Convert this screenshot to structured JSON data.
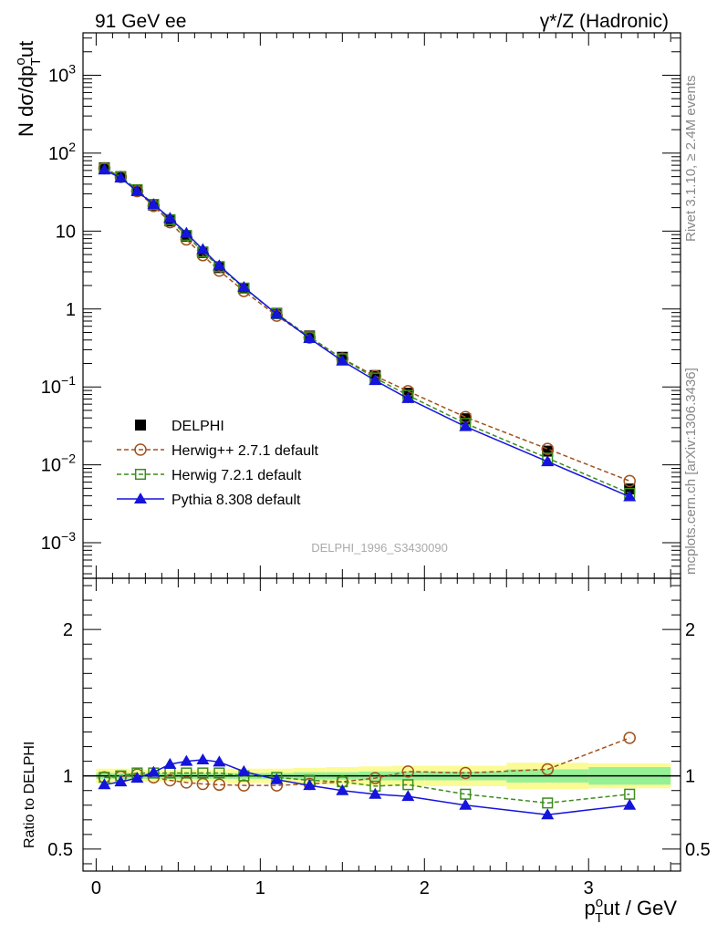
{
  "header": {
    "left_label": "91 GeV ee",
    "right_label": "γ*/Z (Hadronic)"
  },
  "side_labels": {
    "rivet": "Rivet 3.1.10, ≥ 2.4M events",
    "mcplots": "mcplots.cern.ch [arXiv:1306.3436]"
  },
  "watermark": "DELPHI_1996_S3430090",
  "chart_data": [
    {
      "type": "line",
      "scale": "log",
      "ylabel": "N dσ/dp_T^out",
      "ylim": [
        0.00035,
        3500
      ],
      "xlim": [
        -0.08,
        3.56
      ],
      "yticks": [
        {
          "v": 0.001,
          "base": "10",
          "exp": "−3"
        },
        {
          "v": 0.01,
          "base": "10",
          "exp": "−2"
        },
        {
          "v": 0.1,
          "base": "10",
          "exp": "−1"
        },
        {
          "v": 1,
          "base": "1",
          "exp": ""
        },
        {
          "v": 10,
          "base": "10",
          "exp": ""
        },
        {
          "v": 100,
          "base": "10",
          "exp": "2"
        },
        {
          "v": 1000,
          "base": "10",
          "exp": "3"
        }
      ],
      "legend_position": "middle-left",
      "x": [
        0.05,
        0.15,
        0.25,
        0.35,
        0.45,
        0.55,
        0.65,
        0.75,
        0.9,
        1.1,
        1.3,
        1.5,
        1.7,
        1.9,
        2.25,
        2.75,
        3.25
      ],
      "series": [
        {
          "name": "DELPHI",
          "color": "#000000",
          "marker": "square-filled",
          "line": "none",
          "values": [
            65,
            50,
            33,
            21.5,
            13.5,
            8.6,
            5.3,
            3.4,
            1.85,
            0.88,
            0.45,
            0.24,
            0.14,
            0.083,
            0.039,
            0.015,
            0.0049
          ]
        },
        {
          "name": "Herwig++ 2.7.1 default",
          "color": "#a0521c",
          "marker": "circle-open",
          "line": "dashed",
          "values": [
            64,
            49.5,
            32.5,
            21,
            13,
            7.8,
            4.9,
            3.1,
            1.7,
            0.82,
            0.43,
            0.23,
            0.138,
            0.088,
            0.041,
            0.016,
            0.0062
          ]
        },
        {
          "name": "Herwig 7.2.1 default",
          "color": "#3c8c1e",
          "marker": "square-open",
          "line": "dashed",
          "values": [
            64,
            50,
            34,
            22,
            14,
            8.8,
            5.4,
            3.5,
            1.85,
            0.87,
            0.44,
            0.23,
            0.13,
            0.078,
            0.034,
            0.0122,
            0.0043
          ]
        },
        {
          "name": "Pythia 8.308 default",
          "color": "#1414dc",
          "marker": "triangle-filled",
          "line": "solid",
          "values": [
            61,
            48,
            32.5,
            22,
            14.6,
            9.4,
            5.8,
            3.6,
            1.9,
            0.86,
            0.42,
            0.215,
            0.121,
            0.071,
            0.031,
            0.011,
            0.0039
          ]
        }
      ]
    },
    {
      "type": "line",
      "scale": "linear",
      "ylabel": "Ratio to DELPHI",
      "ylim": [
        0.35,
        2.35
      ],
      "xlim": [
        -0.08,
        3.56
      ],
      "xlabel": "p_T^out / GeV",
      "yticks": [
        0.5,
        1,
        2
      ],
      "xticks": [
        0,
        1,
        2,
        3
      ],
      "x": [
        0.05,
        0.15,
        0.25,
        0.35,
        0.45,
        0.55,
        0.65,
        0.75,
        0.9,
        1.1,
        1.3,
        1.5,
        1.7,
        1.9,
        2.25,
        2.75,
        3.25
      ],
      "band_edges": [
        0,
        0.1,
        0.2,
        0.3,
        0.4,
        0.5,
        0.6,
        0.7,
        0.8,
        1.0,
        1.2,
        1.4,
        1.6,
        1.8,
        2.0,
        2.5,
        3.0,
        3.5
      ],
      "band_inner": [
        0.02,
        0.02,
        0.02,
        0.02,
        0.02,
        0.02,
        0.02,
        0.02,
        0.02,
        0.02,
        0.025,
        0.025,
        0.03,
        0.03,
        0.03,
        0.045,
        0.06
      ],
      "band_outer": [
        0.05,
        0.05,
        0.04,
        0.04,
        0.04,
        0.04,
        0.04,
        0.04,
        0.05,
        0.05,
        0.055,
        0.06,
        0.065,
        0.07,
        0.07,
        0.09,
        0.085
      ],
      "series": [
        {
          "name": "Herwig++ 2.7.1 default",
          "color": "#a0521c",
          "marker": "circle-open",
          "line": "dashed",
          "values": [
            0.99,
            0.995,
            1.01,
            0.99,
            0.97,
            0.955,
            0.945,
            0.94,
            0.935,
            0.935,
            0.945,
            0.96,
            0.985,
            1.03,
            1.02,
            1.045,
            1.26
          ]
        },
        {
          "name": "Herwig 7.2.1 default",
          "color": "#3c8c1e",
          "marker": "square-open",
          "line": "dashed",
          "values": [
            0.99,
            1.0,
            1.02,
            1.02,
            1.02,
            1.02,
            1.02,
            1.02,
            1.0,
            0.99,
            0.97,
            0.96,
            0.93,
            0.94,
            0.875,
            0.815,
            0.875
          ]
        },
        {
          "name": "Pythia 8.308 default",
          "color": "#1414dc",
          "marker": "triangle-filled",
          "line": "solid",
          "values": [
            0.94,
            0.96,
            0.985,
            1.025,
            1.08,
            1.1,
            1.11,
            1.095,
            1.03,
            0.975,
            0.935,
            0.9,
            0.875,
            0.86,
            0.8,
            0.735,
            0.8
          ]
        }
      ]
    }
  ]
}
